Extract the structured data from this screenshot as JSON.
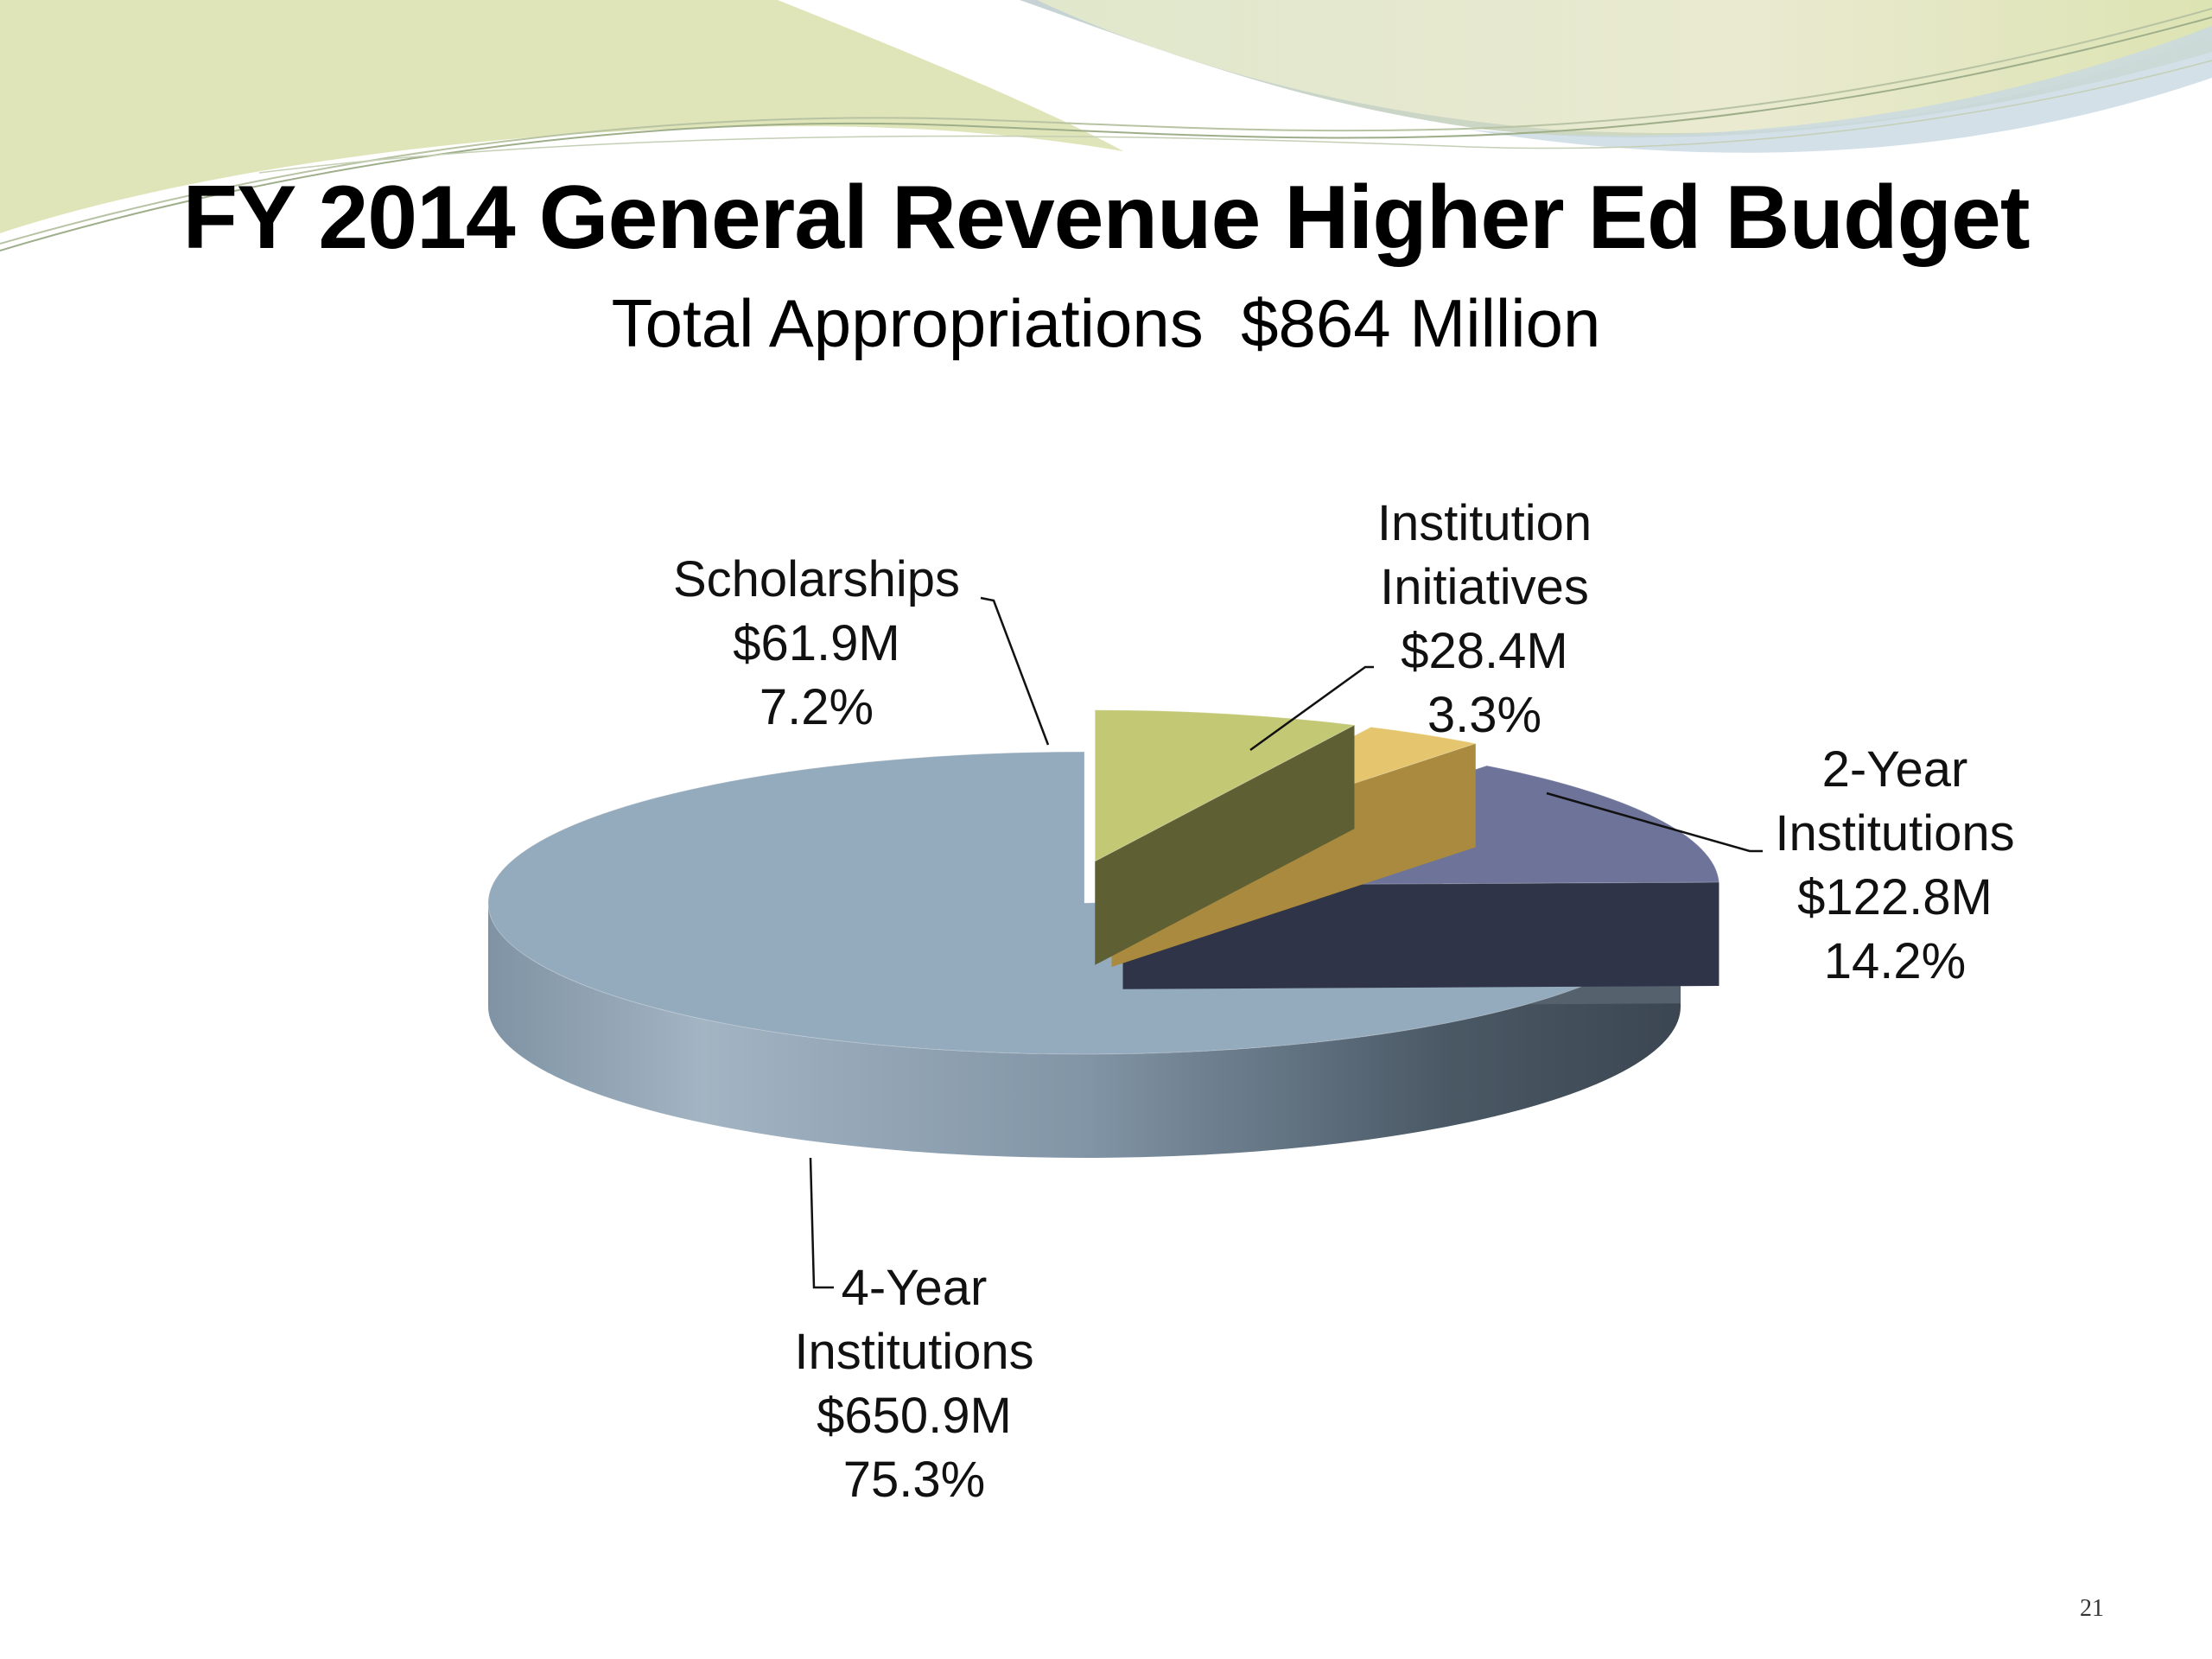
{
  "slide": {
    "title": "FY 2014 General Revenue Higher Ed Budget",
    "subtitle": "Total Appropriations  $864 Million",
    "page_number": "21"
  },
  "colors": {
    "four_year": "#94aabd",
    "scholarships": "#c3c875",
    "institution_initiatives": "#e5c56d",
    "two_year": "#6d7399",
    "banner_green": "#d8dfa8",
    "banner_blue": "#c7d6df"
  },
  "chart_data": {
    "type": "pie",
    "style": "3d-exploded",
    "title": "FY 2014 General Revenue Higher Ed Budget",
    "subtitle": "Total Appropriations  $864 Million",
    "unit": "$M",
    "total": 864,
    "slices": [
      {
        "key": "scholarships",
        "label": [
          "Scholarships",
          "$61.9M",
          "7.2%"
        ],
        "value": 61.9,
        "percent": 7.2,
        "color": "#c3c875"
      },
      {
        "key": "institution_initiatives",
        "label": [
          "Institution",
          "Initiatives",
          "$28.4M",
          "3.3%"
        ],
        "value": 28.4,
        "percent": 3.3,
        "color": "#e5c56d"
      },
      {
        "key": "two_year",
        "label": [
          "2-Year",
          "Institutions",
          "$122.8M",
          "14.2%"
        ],
        "value": 122.8,
        "percent": 14.2,
        "color": "#6d7399"
      },
      {
        "key": "four_year",
        "label": [
          "4-Year",
          "Institutions",
          "$650.9M",
          "75.3%"
        ],
        "value": 650.9,
        "percent": 75.3,
        "color": "#94aabd"
      }
    ]
  }
}
